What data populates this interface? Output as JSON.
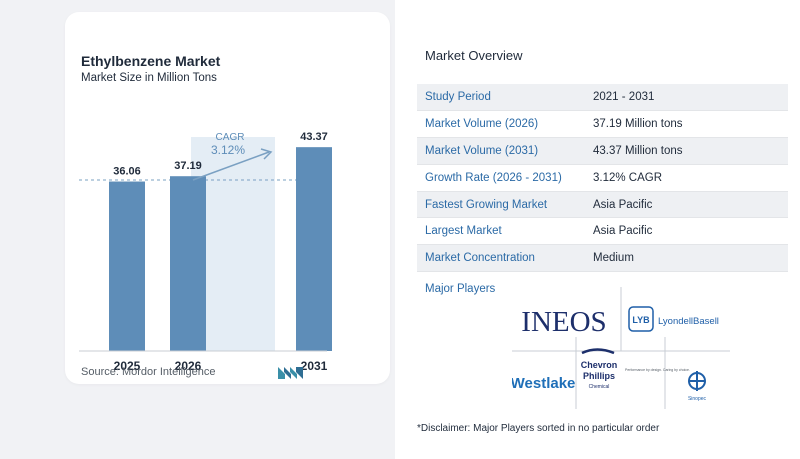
{
  "chart": {
    "title": "Ethylbenzene Market",
    "subtitle": "Market Size in Million Tons",
    "source": "Source:  Mordor Intelligence",
    "cagr_label": "CAGR",
    "cagr_value": "3.12%"
  },
  "chart_data": {
    "type": "bar",
    "title": "Ethylbenzene Market",
    "subtitle": "Market Size in Million Tons",
    "categories": [
      "2025",
      "2026",
      "2031"
    ],
    "values": [
      36.06,
      37.19,
      43.37
    ],
    "value_labels": [
      "36.06",
      "37.19",
      "43.37"
    ],
    "annotation": "CAGR 3.12%",
    "colors": {
      "bar": "#5e8db8",
      "projection_band": "#e4edf5",
      "cagr_text": "#5e8db8"
    }
  },
  "overview": {
    "title": "Market Overview",
    "rows": [
      {
        "label": "Study Period",
        "value": "2021 - 2031"
      },
      {
        "label": "Market Volume (2026)",
        "value": "37.19 Million tons"
      },
      {
        "label": "Market Volume (2031)",
        "value": "43.37 Million tons"
      },
      {
        "label": "Growth Rate (2026 - 2031)",
        "value": "3.12% CAGR"
      },
      {
        "label": "Fastest Growing Market",
        "value": "Asia Pacific"
      },
      {
        "label": "Largest Market",
        "value": "Asia Pacific"
      },
      {
        "label": "Market Concentration",
        "value": "Medium"
      }
    ]
  },
  "players": {
    "title": "Major Players",
    "logos": [
      "INEOS",
      "LYB",
      "LyondellBasell",
      "Westlake",
      "Chevron",
      "Phillips",
      "Chemical",
      "Performance by design. Caring by choice.",
      "Sinopec"
    ]
  },
  "disclaimer": "*Disclaimer: Major Players sorted in no particular order"
}
